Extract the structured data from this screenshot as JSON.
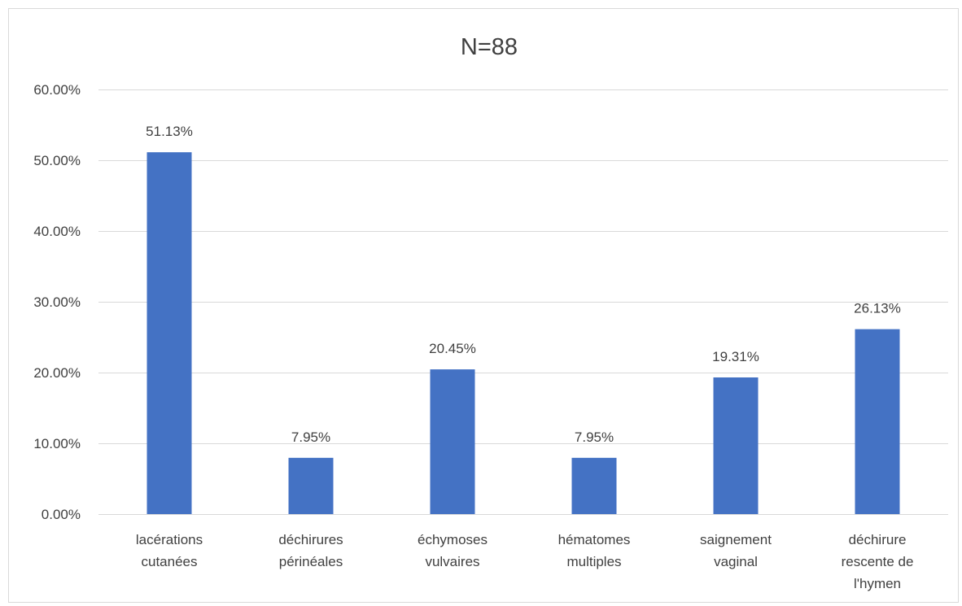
{
  "chart_data": {
    "type": "bar",
    "title": "N=88",
    "xlabel": "",
    "ylabel": "",
    "ylim": [
      0,
      60
    ],
    "y_ticks": [
      0,
      10,
      20,
      30,
      40,
      50,
      60
    ],
    "y_tick_labels": [
      "0.00%",
      "10.00%",
      "20.00%",
      "30.00%",
      "40.00%",
      "50.00%",
      "60.00%"
    ],
    "grid": true,
    "legend": "none",
    "categories": [
      [
        "lacérations",
        "cutanées"
      ],
      [
        "déchirures",
        "périnéales"
      ],
      [
        "échymoses",
        "vulvaires"
      ],
      [
        "hématomes",
        "multiples"
      ],
      [
        "saignement",
        "vaginal"
      ],
      [
        "déchirure",
        "rescente de",
        "l'hymen"
      ]
    ],
    "values": [
      51.13,
      7.95,
      20.45,
      7.95,
      19.31,
      26.13
    ],
    "data_labels": [
      "51.13%",
      "7.95%",
      "20.45%",
      "7.95%",
      "19.31%",
      "26.13%"
    ],
    "bar_color": "#4472c4"
  }
}
